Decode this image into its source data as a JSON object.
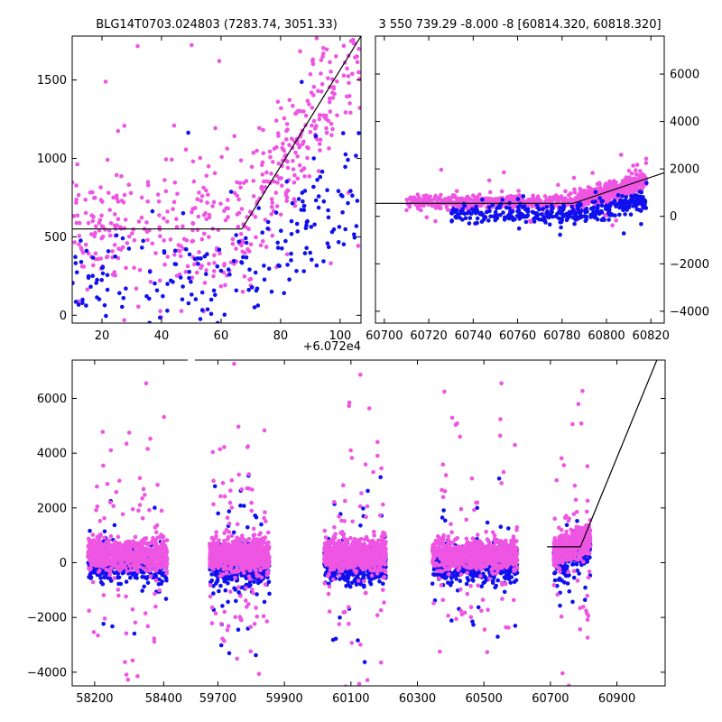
{
  "chart_data": [
    {
      "type": "scatter",
      "name": "zoom-panel",
      "title": "BLG14T0703.024803 (7283.74, 3051.33)",
      "x_offset_label": "+6.072e4",
      "xlim": [
        10,
        107
      ],
      "ylim": [
        -50,
        1780
      ],
      "x_ticks": [
        20,
        40,
        60,
        80,
        100
      ],
      "x_tick_labels": [
        "20",
        "40",
        "60",
        "80",
        "100"
      ],
      "y_ticks": [
        0,
        500,
        1000,
        1500
      ],
      "y_tick_labels": [
        "0",
        "500",
        "1000",
        "1500"
      ],
      "y_axis_side": "left",
      "fit_line": {
        "x": [
          10,
          67,
          107
        ],
        "y": [
          550,
          550,
          1780
        ]
      },
      "series": [
        {
          "name": "magenta",
          "color": "#ee55e2",
          "count": 520,
          "clusters": [
            {
              "x": [
                10,
                66
              ],
              "y_center": 550,
              "y_spread": 450
            },
            {
              "x": [
                66,
                107
              ],
              "y_ramp": [
                560,
                1700
              ],
              "y_spread": 450
            }
          ]
        },
        {
          "name": "blue",
          "color": "#1010ee",
          "count": 210,
          "clusters": [
            {
              "x": [
                10,
                66
              ],
              "y_center": 220,
              "y_spread": 320
            },
            {
              "x": [
                66,
                107
              ],
              "y_ramp": [
                200,
                900
              ],
              "y_spread": 400
            }
          ]
        }
      ]
    },
    {
      "type": "scatter",
      "name": "recent-season-panel",
      "title": "3 550 739.29 -8.000 -8 [60814.320, 60818.320]",
      "xlim": [
        60696,
        60826
      ],
      "ylim": [
        -4500,
        7600
      ],
      "x_ticks": [
        60700,
        60720,
        60740,
        60760,
        60780,
        60800,
        60820
      ],
      "x_tick_labels": [
        "60700",
        "60720",
        "60740",
        "60760",
        "60780",
        "60800",
        "60820"
      ],
      "y_ticks": [
        -4000,
        -2000,
        0,
        2000,
        4000,
        6000
      ],
      "y_tick_labels": [
        "−4000",
        "−2000",
        "0",
        "2000",
        "4000",
        "6000"
      ],
      "y_axis_side": "right",
      "fit_line": {
        "x": [
          60696,
          60785,
          60826
        ],
        "y": [
          550,
          550,
          1840
        ]
      },
      "series": [
        {
          "name": "magenta",
          "color": "#ee55e2",
          "count": 900,
          "clusters": [
            {
              "x": [
                60710,
                60785
              ],
              "y_center": 600,
              "y_spread": 300
            },
            {
              "x": [
                60785,
                60818
              ],
              "y_ramp": [
                600,
                1500
              ],
              "y_spread": 450
            }
          ]
        },
        {
          "name": "blue",
          "color": "#1010ee",
          "count": 380,
          "clusters": [
            {
              "x": [
                60730,
                60785
              ],
              "y_center": 100,
              "y_spread": 450
            },
            {
              "x": [
                60785,
                60818
              ],
              "y_ramp": [
                100,
                600
              ],
              "y_spread": 450
            }
          ]
        }
      ]
    },
    {
      "type": "scatter",
      "name": "full-lightcurve-panel",
      "ylim": [
        -4500,
        7400
      ],
      "y_ticks": [
        -4000,
        -2000,
        0,
        2000,
        4000,
        6000
      ],
      "y_tick_labels": [
        "−4000",
        "−2000",
        "0",
        "2000",
        "4000",
        "6000"
      ],
      "y_axis_side": "left",
      "segments": [
        {
          "xlim": [
            58135,
            58480
          ],
          "x_ticks": [
            58200,
            58400
          ],
          "x_tick_labels": [
            "58200",
            "58400"
          ]
        },
        {
          "xlim": [
            59620,
            61045
          ],
          "x_ticks": [
            59700,
            59900,
            60100,
            60300,
            60500,
            60700,
            60900
          ],
          "x_tick_labels": [
            "59700",
            "59900",
            "60100",
            "60300",
            "60500",
            "60700",
            "60900"
          ]
        }
      ],
      "fit_line": {
        "x": [
          60690,
          60790,
          61020
        ],
        "y": [
          580,
          580,
          7400
        ]
      },
      "seasons": [
        {
          "x": [
            58180,
            58410
          ],
          "magenta_count": 750,
          "blue_count": 300
        },
        {
          "x": [
            59675,
            59855
          ],
          "magenta_count": 900,
          "blue_count": 420
        },
        {
          "x": [
            60020,
            60205
          ],
          "magenta_count": 850,
          "blue_count": 420
        },
        {
          "x": [
            60345,
            60600
          ],
          "magenta_count": 850,
          "blue_count": 400
        },
        {
          "x": [
            60710,
            60820
          ],
          "magenta_count": 500,
          "blue_count": 150
        }
      ],
      "series": [
        {
          "name": "magenta",
          "color": "#ee55e2",
          "y_center": 300,
          "y_spread": 500
        },
        {
          "name": "blue",
          "color": "#1010ee",
          "y_center": -100,
          "y_spread": 600
        }
      ]
    }
  ]
}
